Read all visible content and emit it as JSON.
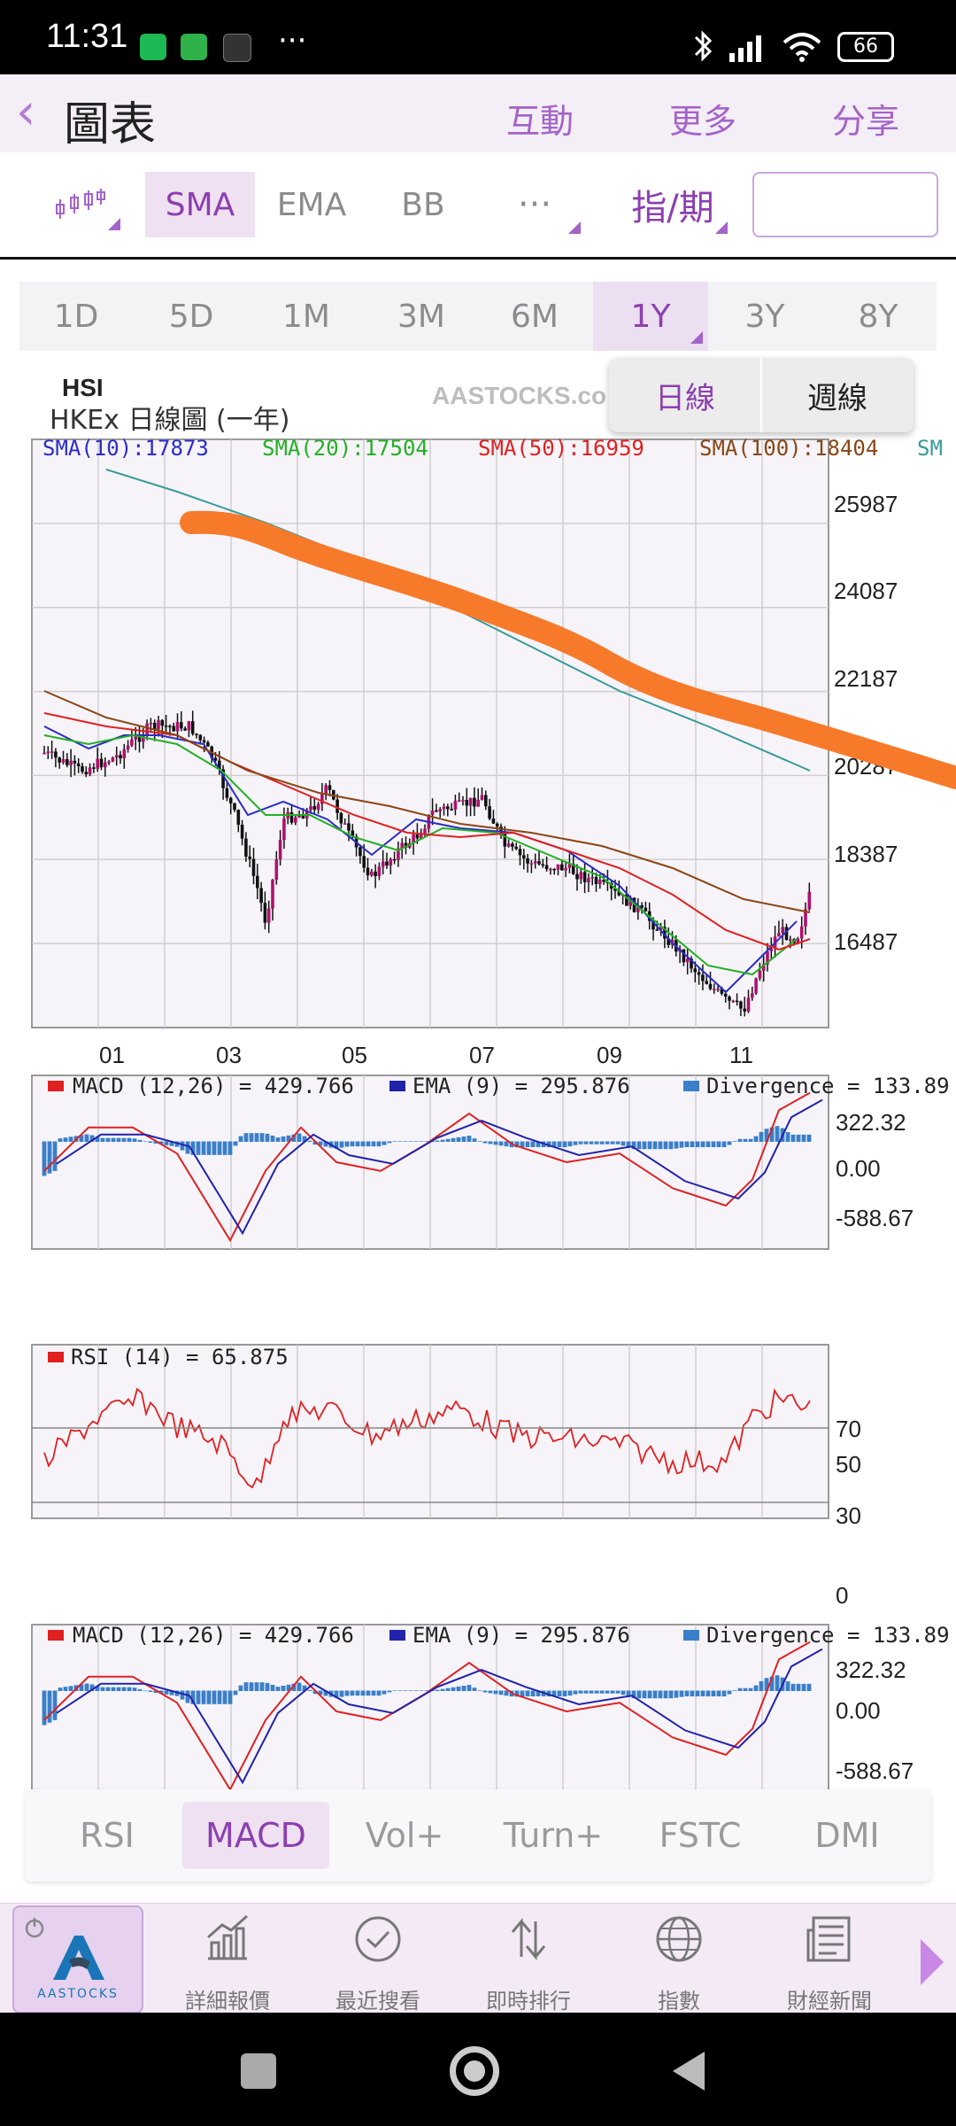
{
  "status": {
    "time": "11:31",
    "battery": "66"
  },
  "header": {
    "back_icon": "chevron-left-icon",
    "title": "圖表",
    "actions": [
      "互動",
      "更多",
      "分享"
    ]
  },
  "toolbar": {
    "chart_type_icon": "candlestick-icon",
    "indicators": [
      "SMA",
      "EMA",
      "BB"
    ],
    "more": "···",
    "period_label": "指/期",
    "input_value": ""
  },
  "periods": {
    "items": [
      "1D",
      "5D",
      "1M",
      "3M",
      "6M",
      "1Y",
      "3Y",
      "8Y"
    ],
    "selected": "1Y"
  },
  "popup": {
    "options": [
      "日線",
      "週線"
    ]
  },
  "chart": {
    "symbol": "HSI",
    "subtitle": "HKEx 日線圖 (一年)",
    "watermark": "AASTOCKS.co",
    "sma": [
      "SMA(10):17873",
      "SMA(20):17504",
      "SMA(50):16959",
      "SMA(100):18404",
      "SM"
    ],
    "y_ticks": [
      "25987",
      "24087",
      "22187",
      "20287",
      "18387",
      "16487"
    ],
    "x_ticks": [
      "01",
      "03",
      "05",
      "07",
      "09",
      "11"
    ]
  },
  "macd": {
    "label_macd": "MACD (12,26) = 429.766",
    "label_ema": "EMA (9) = 295.876",
    "label_div": "Divergence = 133.89",
    "y_ticks": [
      "322.32",
      "0.00",
      "-588.67"
    ]
  },
  "rsi": {
    "label": "RSI (14)  = 65.875",
    "y_ticks": [
      "70",
      "50",
      "30",
      "0"
    ]
  },
  "macd2": {
    "label_macd": "MACD (12,26) = 429.766",
    "label_ema": "EMA (9) = 295.876",
    "label_div": "Divergence = 133.89",
    "y_ticks": [
      "322.32",
      "0.00",
      "-588.67"
    ]
  },
  "indicator_tabs": {
    "items": [
      "RSI",
      "MACD",
      "Vol+",
      "Turn+",
      "FSTC",
      "DMI"
    ],
    "selected": "MACD"
  },
  "bottom_nav": {
    "logo_text": "AASTOCKS",
    "items": [
      "詳細報價",
      "最近搜看",
      "即時排行",
      "指數",
      "財經新聞"
    ]
  }
}
